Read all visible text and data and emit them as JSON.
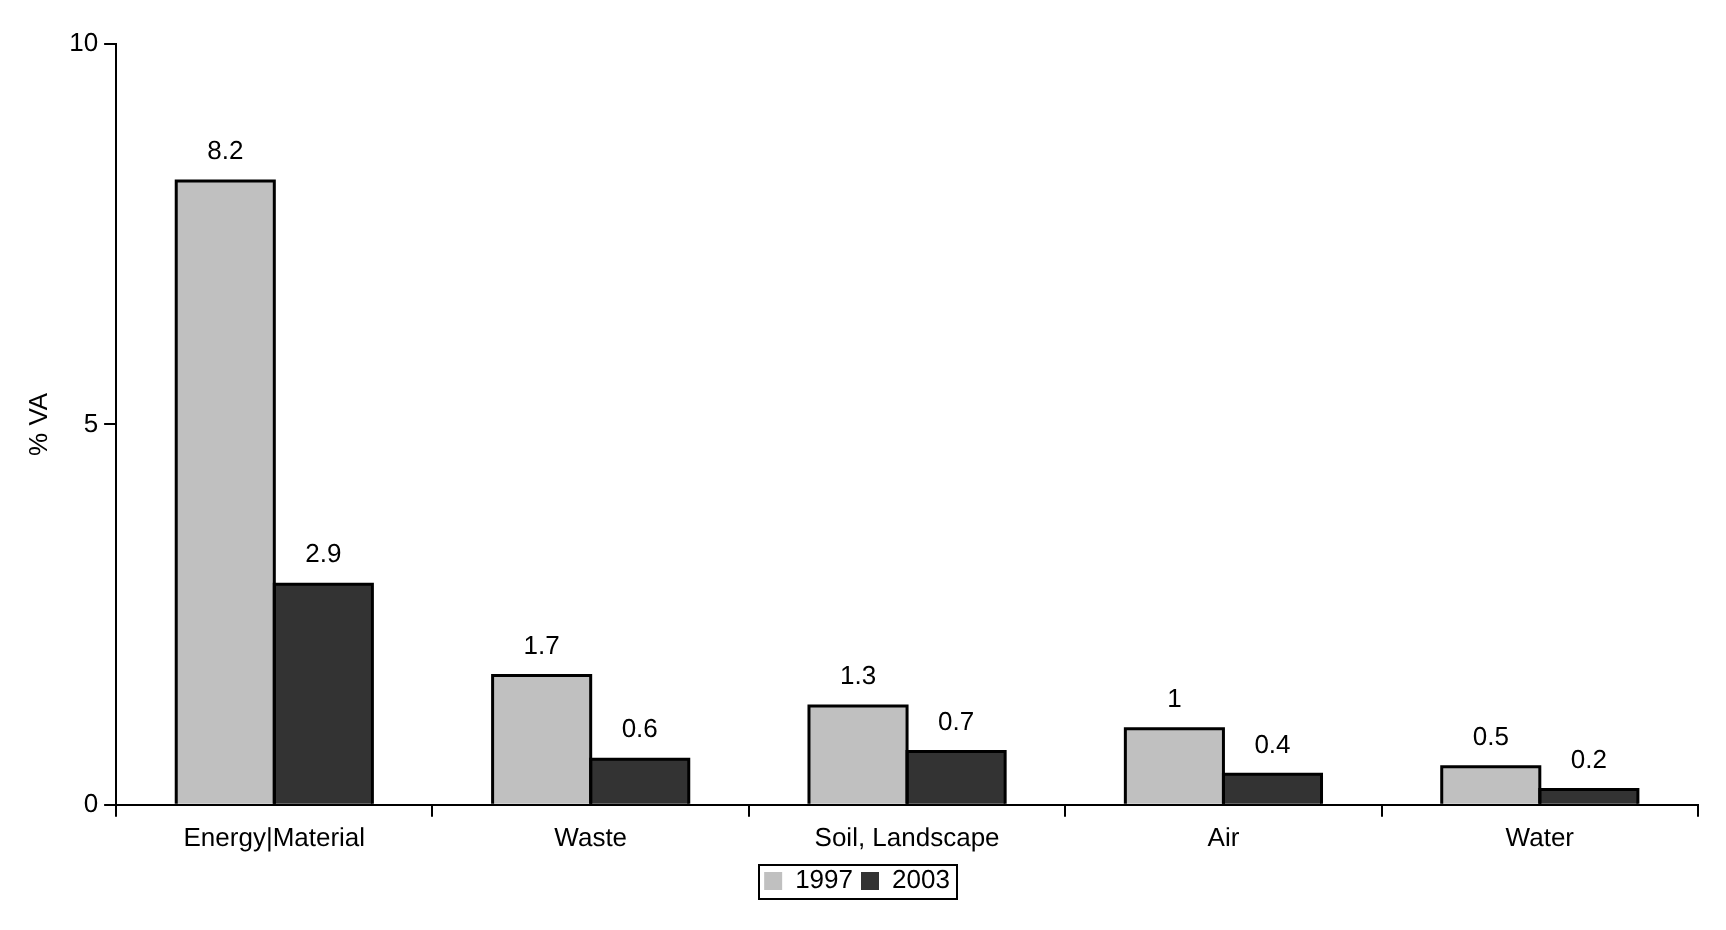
{
  "chart_data": {
    "type": "bar",
    "ylabel": "% VA",
    "categories": [
      "Energy|Material",
      "Waste",
      "Soil, Landscape",
      "Air",
      "Water"
    ],
    "series": [
      {
        "name": "1997",
        "color": "#c0c0c0",
        "values": [
          8.2,
          1.7,
          1.3,
          1,
          0.5
        ]
      },
      {
        "name": "2003",
        "color": "#333333",
        "values": [
          2.9,
          0.6,
          0.7,
          0.4,
          0.2
        ]
      }
    ],
    "ylim": [
      0,
      10
    ],
    "yticks": [
      0,
      5,
      10
    ],
    "grid": false,
    "legend": "bottom",
    "data_labels": true
  }
}
